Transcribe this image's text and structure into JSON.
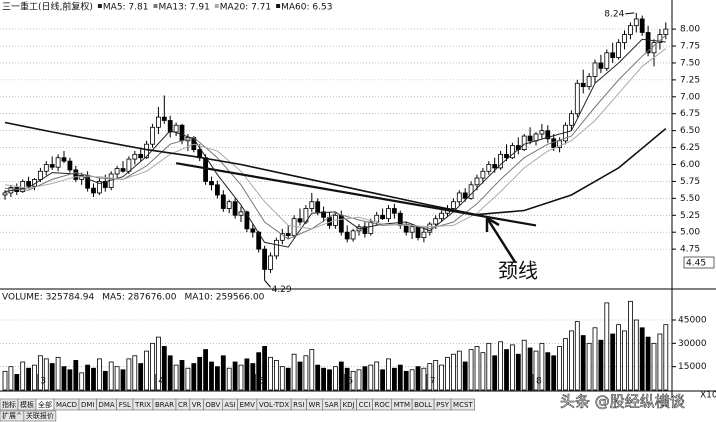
{
  "chart_data": [
    {
      "type": "candlestick",
      "title": "三一重工(日线,前复权)",
      "categories": [
        null,
        null,
        null,
        null,
        null,
        null,
        "3",
        null,
        null,
        null,
        null,
        null,
        null,
        null,
        null,
        null,
        null,
        null,
        null,
        null,
        null,
        null,
        null,
        null,
        null,
        null,
        "4",
        null,
        null,
        null,
        null,
        null,
        null,
        null,
        null,
        null,
        null,
        null,
        null,
        null,
        null,
        null,
        null,
        "5",
        null,
        null,
        null,
        null,
        null,
        null,
        null,
        null,
        null,
        null,
        null,
        null,
        null,
        null,
        "6",
        null,
        null,
        null,
        null,
        null,
        null,
        null,
        null,
        null,
        null,
        null,
        null,
        null,
        "7",
        null,
        null,
        null,
        null,
        null,
        null,
        null,
        null,
        null,
        null,
        null,
        null,
        null,
        null,
        null,
        null,
        null,
        "8",
        null,
        null,
        null,
        null,
        null,
        null,
        null,
        null,
        null,
        null,
        null,
        null,
        null,
        null,
        null,
        null,
        null,
        null,
        null,
        null,
        null,
        null
      ],
      "ohlc": [
        [
          5.55,
          5.62,
          5.48,
          5.58
        ],
        [
          5.58,
          5.7,
          5.52,
          5.66
        ],
        [
          5.66,
          5.72,
          5.55,
          5.6
        ],
        [
          5.6,
          5.78,
          5.58,
          5.75
        ],
        [
          5.75,
          5.82,
          5.64,
          5.68
        ],
        [
          5.68,
          5.8,
          5.62,
          5.78
        ],
        [
          5.78,
          5.95,
          5.74,
          5.9
        ],
        [
          5.9,
          6.05,
          5.84,
          6.0
        ],
        [
          6.0,
          6.12,
          5.92,
          5.96
        ],
        [
          5.96,
          6.15,
          5.9,
          6.1
        ],
        [
          6.1,
          6.2,
          6.02,
          6.05
        ],
        [
          6.05,
          6.1,
          5.88,
          5.92
        ],
        [
          5.92,
          5.98,
          5.74,
          5.78
        ],
        [
          5.78,
          5.88,
          5.7,
          5.84
        ],
        [
          5.84,
          5.9,
          5.6,
          5.65
        ],
        [
          5.65,
          5.72,
          5.52,
          5.58
        ],
        [
          5.58,
          5.8,
          5.55,
          5.75
        ],
        [
          5.75,
          5.85,
          5.6,
          5.66
        ],
        [
          5.66,
          5.9,
          5.62,
          5.86
        ],
        [
          5.86,
          5.98,
          5.8,
          5.94
        ],
        [
          5.94,
          6.05,
          5.88,
          5.9
        ],
        [
          5.9,
          6.12,
          5.86,
          6.08
        ],
        [
          6.08,
          6.2,
          6.0,
          6.15
        ],
        [
          6.15,
          6.25,
          6.05,
          6.1
        ],
        [
          6.1,
          6.35,
          6.08,
          6.3
        ],
        [
          6.3,
          6.6,
          6.25,
          6.55
        ],
        [
          6.55,
          6.85,
          6.45,
          6.7
        ],
        [
          6.7,
          7.02,
          6.6,
          6.65
        ],
        [
          6.65,
          6.72,
          6.4,
          6.48
        ],
        [
          6.48,
          6.62,
          6.42,
          6.58
        ],
        [
          6.58,
          6.6,
          6.3,
          6.35
        ],
        [
          6.35,
          6.45,
          6.2,
          6.4
        ],
        [
          6.4,
          6.42,
          6.18,
          6.22
        ],
        [
          6.22,
          6.3,
          6.05,
          6.1
        ],
        [
          6.1,
          6.15,
          5.7,
          5.75
        ],
        [
          5.75,
          5.82,
          5.62,
          5.7
        ],
        [
          5.7,
          5.76,
          5.5,
          5.55
        ],
        [
          5.55,
          5.62,
          5.3,
          5.35
        ],
        [
          5.35,
          5.48,
          5.28,
          5.45
        ],
        [
          5.45,
          5.5,
          5.2,
          5.25
        ],
        [
          5.25,
          5.38,
          5.15,
          5.3
        ],
        [
          5.3,
          5.32,
          5.0,
          5.05
        ],
        [
          5.05,
          5.12,
          4.92,
          5.0
        ],
        [
          5.0,
          5.02,
          4.7,
          4.75
        ],
        [
          4.75,
          4.8,
          4.29,
          4.45
        ],
        [
          4.45,
          4.7,
          4.4,
          4.65
        ],
        [
          4.65,
          4.92,
          4.6,
          4.88
        ],
        [
          4.88,
          5.05,
          4.82,
          4.98
        ],
        [
          4.98,
          5.1,
          4.9,
          4.95
        ],
        [
          4.95,
          5.25,
          4.92,
          5.2
        ],
        [
          5.2,
          5.35,
          5.1,
          5.15
        ],
        [
          5.15,
          5.4,
          5.12,
          5.35
        ],
        [
          5.35,
          5.58,
          5.3,
          5.45
        ],
        [
          5.45,
          5.5,
          5.25,
          5.3
        ],
        [
          5.3,
          5.38,
          5.15,
          5.22
        ],
        [
          5.22,
          5.3,
          5.05,
          5.1
        ],
        [
          5.1,
          5.28,
          5.05,
          5.25
        ],
        [
          5.25,
          5.32,
          4.95,
          5.0
        ],
        [
          5.0,
          5.1,
          4.85,
          4.9
        ],
        [
          4.9,
          5.05,
          4.86,
          5.02
        ],
        [
          5.02,
          5.12,
          4.95,
          5.08
        ],
        [
          5.08,
          5.15,
          4.92,
          4.98
        ],
        [
          4.98,
          5.2,
          4.95,
          5.15
        ],
        [
          5.15,
          5.3,
          5.1,
          5.25
        ],
        [
          5.25,
          5.35,
          5.18,
          5.2
        ],
        [
          5.2,
          5.4,
          5.15,
          5.35
        ],
        [
          5.35,
          5.42,
          5.2,
          5.28
        ],
        [
          5.28,
          5.32,
          5.05,
          5.1
        ],
        [
          5.1,
          5.15,
          4.95,
          5.0
        ],
        [
          5.0,
          5.12,
          4.9,
          5.08
        ],
        [
          5.08,
          5.1,
          4.88,
          4.92
        ],
        [
          4.92,
          5.05,
          4.85,
          5.0
        ],
        [
          5.0,
          5.15,
          4.95,
          5.12
        ],
        [
          5.12,
          5.25,
          5.05,
          5.2
        ],
        [
          5.2,
          5.32,
          5.15,
          5.28
        ],
        [
          5.28,
          5.4,
          5.22,
          5.35
        ],
        [
          5.35,
          5.5,
          5.3,
          5.45
        ],
        [
          5.45,
          5.62,
          5.4,
          5.58
        ],
        [
          5.58,
          5.65,
          5.45,
          5.5
        ],
        [
          5.5,
          5.75,
          5.48,
          5.7
        ],
        [
          5.7,
          5.85,
          5.62,
          5.8
        ],
        [
          5.8,
          5.95,
          5.72,
          5.9
        ],
        [
          5.9,
          6.05,
          5.85,
          6.0
        ],
        [
          6.0,
          6.1,
          5.88,
          5.95
        ],
        [
          5.95,
          6.2,
          5.92,
          6.15
        ],
        [
          6.15,
          6.3,
          6.05,
          6.1
        ],
        [
          6.1,
          6.32,
          6.08,
          6.28
        ],
        [
          6.28,
          6.4,
          6.15,
          6.22
        ],
        [
          6.22,
          6.45,
          6.2,
          6.42
        ],
        [
          6.42,
          6.55,
          6.3,
          6.35
        ],
        [
          6.35,
          6.48,
          6.28,
          6.45
        ],
        [
          6.45,
          6.6,
          6.38,
          6.5
        ],
        [
          6.5,
          6.58,
          6.32,
          6.38
        ],
        [
          6.38,
          6.45,
          6.2,
          6.25
        ],
        [
          6.25,
          6.4,
          6.18,
          6.35
        ],
        [
          6.35,
          6.62,
          6.3,
          6.58
        ],
        [
          6.58,
          6.8,
          6.5,
          6.75
        ],
        [
          6.75,
          7.25,
          6.7,
          7.2
        ],
        [
          7.2,
          7.4,
          7.05,
          7.15
        ],
        [
          7.15,
          7.35,
          7.1,
          7.3
        ],
        [
          7.3,
          7.55,
          7.2,
          7.5
        ],
        [
          7.5,
          7.62,
          7.35,
          7.42
        ],
        [
          7.42,
          7.7,
          7.38,
          7.65
        ],
        [
          7.65,
          7.8,
          7.5,
          7.58
        ],
        [
          7.58,
          7.85,
          7.55,
          7.8
        ],
        [
          7.8,
          7.98,
          7.7,
          7.92
        ],
        [
          7.92,
          8.1,
          7.85,
          8.05
        ],
        [
          8.05,
          8.24,
          7.95,
          8.15
        ],
        [
          8.15,
          8.2,
          7.9,
          7.95
        ],
        [
          7.95,
          8.05,
          7.6,
          7.65
        ],
        [
          7.65,
          7.85,
          7.45,
          7.8
        ],
        [
          7.8,
          8.0,
          7.7,
          7.92
        ],
        [
          7.92,
          8.1,
          7.85,
          8.0
        ]
      ],
      "series": [
        {
          "name": "MA5: 7.81",
          "color": "#222222",
          "width": 1,
          "x": [
            0,
            4,
            8,
            12,
            16,
            20,
            24,
            28,
            32,
            36,
            40,
            44,
            48,
            52,
            56,
            60,
            64,
            68,
            72,
            76,
            80,
            84,
            88,
            92,
            96,
            100,
            104,
            108,
            112
          ],
          "values": [
            5.6,
            5.66,
            5.88,
            5.86,
            5.72,
            5.82,
            6.12,
            6.5,
            6.38,
            5.85,
            5.4,
            4.85,
            4.78,
            5.28,
            5.3,
            5.05,
            5.12,
            5.15,
            5.02,
            5.3,
            5.65,
            6.0,
            6.3,
            6.4,
            6.5,
            7.2,
            7.5,
            7.85,
            7.81
          ]
        },
        {
          "name": "MA13: 7.91",
          "color": "#777777",
          "width": 1,
          "x": [
            0,
            4,
            8,
            12,
            16,
            20,
            24,
            28,
            32,
            36,
            40,
            44,
            48,
            52,
            56,
            60,
            64,
            68,
            72,
            76,
            80,
            84,
            88,
            92,
            96,
            100,
            104,
            108,
            112
          ],
          "values": [
            5.65,
            5.62,
            5.78,
            5.88,
            5.8,
            5.78,
            5.98,
            6.3,
            6.4,
            6.1,
            5.7,
            5.15,
            4.9,
            5.05,
            5.28,
            5.18,
            5.1,
            5.12,
            5.05,
            5.15,
            5.42,
            5.78,
            6.1,
            6.3,
            6.42,
            6.85,
            7.25,
            7.6,
            7.91
          ]
        },
        {
          "name": "MA20: 7.71",
          "color": "#aaaaaa",
          "width": 1,
          "x": [
            0,
            4,
            8,
            12,
            16,
            20,
            24,
            28,
            32,
            36,
            40,
            44,
            48,
            52,
            56,
            60,
            64,
            68,
            72,
            76,
            80,
            84,
            88,
            92,
            96,
            100,
            104,
            108,
            112
          ],
          "values": [
            5.7,
            5.65,
            5.72,
            5.82,
            5.82,
            5.78,
            5.9,
            6.15,
            6.3,
            6.2,
            5.9,
            5.45,
            5.1,
            5.05,
            5.18,
            5.22,
            5.12,
            5.1,
            5.08,
            5.1,
            5.28,
            5.6,
            5.95,
            6.2,
            6.35,
            6.65,
            7.05,
            7.45,
            7.71
          ]
        },
        {
          "name": "MA60: 6.53",
          "color": "#111111",
          "width": 1.6,
          "x": [
            0,
            8,
            16,
            24,
            32,
            40,
            48,
            56,
            64,
            72,
            80,
            88,
            96,
            104,
            112
          ],
          "values": [
            6.62,
            6.48,
            6.35,
            6.22,
            6.12,
            6.0,
            5.85,
            5.7,
            5.55,
            5.4,
            5.26,
            5.32,
            5.55,
            5.95,
            6.53
          ]
        }
      ],
      "neckline": {
        "x": [
          29,
          90
        ],
        "values": [
          6.02,
          5.1
        ],
        "color": "#111111"
      },
      "annotations": [
        {
          "text": "8.24",
          "x": 107,
          "value": 8.24
        },
        {
          "text": "4.29",
          "x": 44,
          "value": 4.29
        },
        {
          "text": "颈线"
        }
      ],
      "marker_label": "4.45",
      "up_color": "#ffffff",
      "down_color": "#000000",
      "ylim": [
        4.22,
        8.43
      ],
      "yticks": [
        4.75,
        {
          "value": 5,
          "label": "5.00"
        },
        5.25,
        {
          "value": 5.5,
          "label": "5.50"
        },
        5.75,
        {
          "value": 6,
          "label": "6.00"
        },
        6.25,
        {
          "value": 6.5,
          "label": "6.50"
        },
        6.75,
        {
          "value": 7,
          "label": "7.00"
        },
        7.25,
        {
          "value": 7.5,
          "label": "7.50"
        },
        7.75,
        {
          "value": 8,
          "label": "8.00"
        }
      ],
      "grid": true
    },
    {
      "type": "bar",
      "title": "VOLUME: 325784.94",
      "legend": [
        "MA5: 287676.00",
        "MA10: 259566.00"
      ],
      "values": [
        12000,
        15000,
        10000,
        18000,
        14000,
        16000,
        22000,
        20000,
        17000,
        21000,
        15000,
        13000,
        19000,
        11000,
        16000,
        14000,
        20000,
        12000,
        18000,
        15000,
        13000,
        20000,
        22000,
        17000,
        25000,
        30000,
        34000,
        28000,
        22000,
        16000,
        19000,
        14000,
        17000,
        21000,
        26000,
        18000,
        15000,
        22000,
        14000,
        18000,
        16000,
        20000,
        17000,
        24000,
        28000,
        21000,
        19000,
        15000,
        14000,
        23000,
        18000,
        22000,
        26000,
        16000,
        14000,
        13000,
        15000,
        18000,
        14000,
        12000,
        13000,
        15000,
        16000,
        18000,
        13000,
        20000,
        14000,
        16000,
        12000,
        13000,
        15000,
        14000,
        17000,
        19000,
        16000,
        21000,
        23000,
        25000,
        18000,
        26000,
        28000,
        24000,
        30000,
        22000,
        31000,
        26000,
        29000,
        23000,
        32000,
        27000,
        25000,
        30000,
        24000,
        22000,
        28000,
        33000,
        38000,
        44000,
        35000,
        30000,
        40000,
        32000,
        56000,
        36000,
        42000,
        38000,
        57000,
        45000,
        40000,
        34000,
        30000,
        36000,
        42000
      ],
      "unit_label": "X10",
      "ylim": [
        0,
        63000
      ],
      "yticks": [
        15000,
        30000,
        45000
      ],
      "grid": true
    }
  ],
  "toolbar": {
    "tabs": [
      "指标",
      "模板",
      "全部",
      "MACD",
      "DMI",
      "DMA",
      "FSL",
      "TRIX",
      "BRAR",
      "CR",
      "VR",
      "OBV",
      "ASI",
      "EMV",
      "VOL-TDX",
      "RSI",
      "WR",
      "SAR",
      "KDJ",
      "CCI",
      "ROC",
      "MTM",
      "BOLL",
      "PSY",
      "MCST"
    ],
    "bottom_tabs": [
      "扩展^",
      "关联报价"
    ]
  },
  "watermark": "头条 @股经纵横谈"
}
